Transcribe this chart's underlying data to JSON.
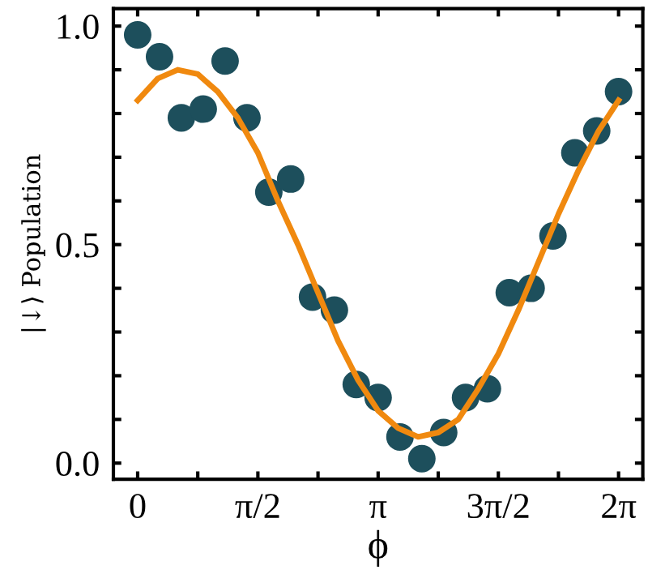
{
  "chart_data": {
    "type": "scatter",
    "xlabel": "ϕ",
    "ylabel": "|↓⟩ Population",
    "xlim": [
      -0.317,
      6.6
    ],
    "ylim": [
      -0.037,
      1.04
    ],
    "xticks": [
      {
        "value": 0,
        "label": "0"
      },
      {
        "value": 0.7854,
        "label": null
      },
      {
        "value": 1.5708,
        "label": "π/2"
      },
      {
        "value": 2.3562,
        "label": null
      },
      {
        "value": 3.1416,
        "label": "π"
      },
      {
        "value": 3.927,
        "label": null
      },
      {
        "value": 4.7124,
        "label": "3π/2"
      },
      {
        "value": 5.4978,
        "label": null
      },
      {
        "value": 6.2832,
        "label": "2π"
      }
    ],
    "yticks": [
      {
        "value": 0,
        "label": "0.0"
      },
      {
        "value": 0.1,
        "label": null
      },
      {
        "value": 0.2,
        "label": null
      },
      {
        "value": 0.3,
        "label": null
      },
      {
        "value": 0.4,
        "label": null
      },
      {
        "value": 0.5,
        "label": "0.5"
      },
      {
        "value": 0.6,
        "label": null
      },
      {
        "value": 0.7,
        "label": null
      },
      {
        "value": 0.8,
        "label": null
      },
      {
        "value": 0.9,
        "label": null
      },
      {
        "value": 1.0,
        "label": "1.0"
      }
    ],
    "grid": false,
    "legend": false,
    "series": [
      {
        "marker": "circle",
        "color": "#1d4f5c",
        "x": [
          0,
          0.2856,
          0.5712,
          0.8568,
          1.1424,
          1.428,
          1.7136,
          1.9992,
          2.2848,
          2.5704,
          2.856,
          3.1416,
          3.4272,
          3.7128,
          3.9984,
          4.284,
          4.5696,
          4.8552,
          5.1408,
          5.4264,
          5.712,
          5.9976,
          6.2832
        ],
        "values": [
          0.98,
          0.93,
          0.79,
          0.81,
          0.92,
          0.79,
          0.62,
          0.65,
          0.38,
          0.35,
          0.18,
          0.15,
          0.06,
          0.01,
          0.07,
          0.15,
          0.17,
          0.39,
          0.4,
          0.52,
          0.71,
          0.76,
          0.85
        ]
      },
      {
        "type": "line",
        "color": "#f0890f",
        "x": [
          0,
          0.2618,
          0.5236,
          0.7854,
          1.0472,
          1.309,
          1.5708,
          1.8326,
          2.0944,
          2.3562,
          2.618,
          2.8798,
          3.1416,
          3.4034,
          3.6652,
          3.927,
          4.1888,
          4.4506,
          4.7124,
          4.9742,
          5.236,
          5.4978,
          5.7596,
          6.0214,
          6.2832
        ],
        "values": [
          0.83,
          0.88,
          0.9,
          0.89,
          0.85,
          0.79,
          0.71,
          0.6,
          0.5,
          0.39,
          0.28,
          0.19,
          0.12,
          0.08,
          0.06,
          0.07,
          0.1,
          0.17,
          0.25,
          0.35,
          0.46,
          0.57,
          0.67,
          0.76,
          0.83
        ]
      }
    ]
  }
}
